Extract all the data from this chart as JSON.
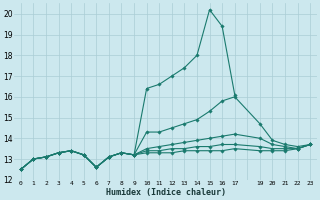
{
  "xlabel": "Humidex (Indice chaleur)",
  "background_color": "#cce8ee",
  "grid_color": "#aacdd5",
  "line_color": "#1a7a6e",
  "xlim": [
    -0.5,
    23.5
  ],
  "ylim": [
    12,
    20.5
  ],
  "yticks": [
    12,
    13,
    14,
    15,
    16,
    17,
    18,
    19,
    20
  ],
  "xtick_labels": [
    "0",
    "1",
    "2",
    "3",
    "4",
    "5",
    "6",
    "7",
    "8",
    "9",
    "10",
    "11",
    "12",
    "13",
    "14",
    "15",
    "16",
    "17",
    "",
    "19",
    "20",
    "21",
    "22",
    "23"
  ],
  "series": [
    {
      "x": [
        0,
        1,
        2,
        3,
        4,
        5,
        6,
        7,
        8,
        9,
        10,
        11,
        12,
        13,
        14,
        15,
        16,
        17
      ],
      "y": [
        12.5,
        13.0,
        13.1,
        13.3,
        13.4,
        13.2,
        12.6,
        13.1,
        13.3,
        13.2,
        16.4,
        16.6,
        17.0,
        17.4,
        18.0,
        20.2,
        19.4,
        16.1
      ]
    },
    {
      "x": [
        0,
        1,
        2,
        3,
        4,
        5,
        6,
        7,
        8,
        9,
        10,
        11,
        12,
        13,
        14,
        15,
        16,
        17,
        19,
        20,
        21,
        22,
        23
      ],
      "y": [
        12.5,
        13.0,
        13.1,
        13.3,
        13.4,
        13.2,
        12.6,
        13.1,
        13.3,
        13.2,
        14.3,
        14.3,
        14.5,
        14.7,
        14.9,
        15.3,
        15.8,
        16.0,
        14.7,
        13.9,
        13.7,
        13.6,
        13.7
      ]
    },
    {
      "x": [
        0,
        1,
        2,
        3,
        4,
        5,
        6,
        7,
        8,
        9,
        10,
        11,
        12,
        13,
        14,
        15,
        16,
        17,
        19,
        20,
        21,
        22,
        23
      ],
      "y": [
        12.5,
        13.0,
        13.1,
        13.3,
        13.4,
        13.2,
        12.6,
        13.1,
        13.3,
        13.2,
        13.5,
        13.6,
        13.7,
        13.8,
        13.9,
        14.0,
        14.1,
        14.2,
        14.0,
        13.7,
        13.6,
        13.5,
        13.7
      ]
    },
    {
      "x": [
        0,
        1,
        2,
        3,
        4,
        5,
        6,
        7,
        8,
        9,
        10,
        11,
        12,
        13,
        14,
        15,
        16,
        17,
        19,
        20,
        21,
        22,
        23
      ],
      "y": [
        12.5,
        13.0,
        13.1,
        13.3,
        13.4,
        13.2,
        12.6,
        13.1,
        13.3,
        13.2,
        13.4,
        13.4,
        13.5,
        13.5,
        13.6,
        13.6,
        13.7,
        13.7,
        13.6,
        13.5,
        13.5,
        13.5,
        13.7
      ]
    },
    {
      "x": [
        0,
        1,
        2,
        3,
        4,
        5,
        6,
        7,
        8,
        9,
        10,
        11,
        12,
        13,
        14,
        15,
        16,
        17,
        19,
        20,
        21,
        22,
        23
      ],
      "y": [
        12.5,
        13.0,
        13.1,
        13.3,
        13.4,
        13.2,
        12.6,
        13.1,
        13.3,
        13.2,
        13.3,
        13.3,
        13.3,
        13.4,
        13.4,
        13.4,
        13.4,
        13.5,
        13.4,
        13.4,
        13.4,
        13.5,
        13.7
      ]
    }
  ]
}
